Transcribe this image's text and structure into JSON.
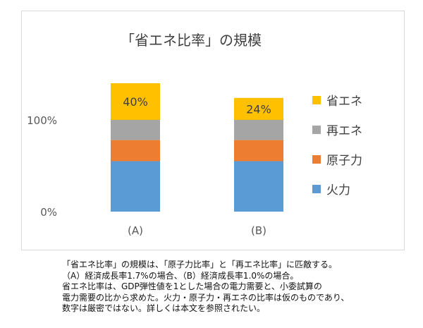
{
  "chart_data": {
    "type": "bar",
    "stacked": true,
    "title": "「省エネ比率」の規模",
    "categories": [
      "(A)",
      "(B)"
    ],
    "y_ticks": [
      "0%",
      "100%"
    ],
    "ylim": [
      0,
      140
    ],
    "series": [
      {
        "name": "火力",
        "color": "#5b9bd5",
        "values": [
          55,
          55
        ]
      },
      {
        "name": "原子力",
        "color": "#ed7d31",
        "values": [
          23,
          23
        ]
      },
      {
        "name": "再エネ",
        "color": "#a5a5a5",
        "values": [
          22,
          22
        ]
      },
      {
        "name": "省エネ",
        "color": "#ffc000",
        "values": [
          40,
          24
        ]
      }
    ],
    "data_labels": [
      "40%",
      "24%"
    ],
    "legend_position": "right",
    "grid": false
  },
  "caption": [
    "「省エネ比率」の規模は、「原子力比率」と「再エネ比率」に匹敵する。",
    "（A）経済成長率1.7%の場合、（B）経済成長率1.0%の場合。",
    "省エネ比率は、GDP弾性値を1とした場合の電力需要と、小委試算の",
    "電力需要の比から求めた。火力・原子力・再エネの比率は仮のものであり、",
    "数字は厳密ではない。詳しくは本文を参照されたい。"
  ]
}
